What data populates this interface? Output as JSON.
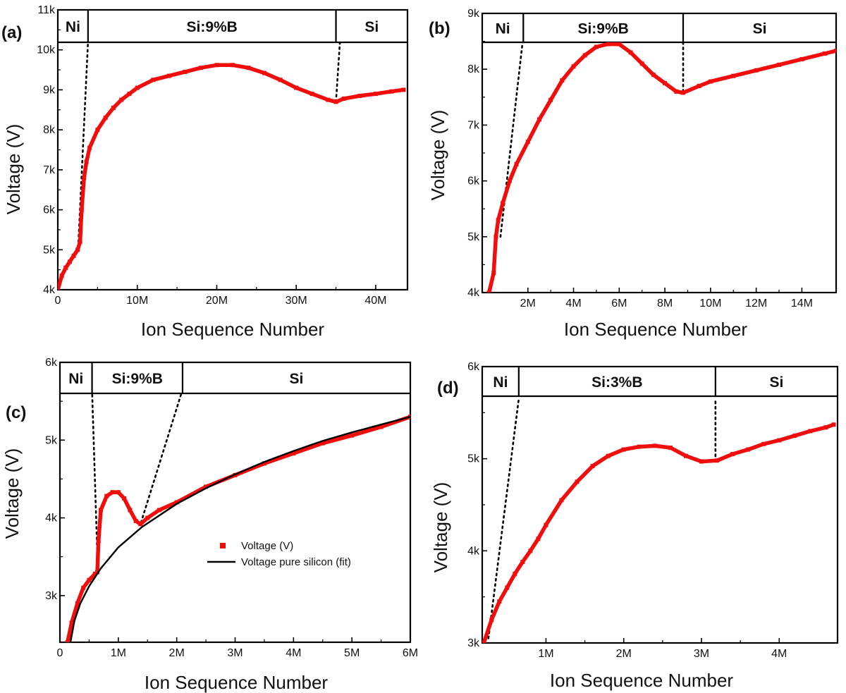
{
  "colors": {
    "data": "#f20d0d",
    "fit": "#000000",
    "guide": "#000000",
    "axis": "#000000"
  },
  "chart_data": [
    {
      "panel": "(a)",
      "type": "scatter",
      "xlabel": "Ion Sequence Number",
      "ylabel": "Voltage (V)",
      "xlim": [
        0,
        44000000
      ],
      "ylim": [
        4000,
        11000
      ],
      "x_ticks": [
        0,
        10000000,
        20000000,
        30000000,
        40000000
      ],
      "x_tick_labels": [
        "0",
        "10M",
        "20M",
        "30M",
        "40M"
      ],
      "y_ticks": [
        4000,
        5000,
        6000,
        7000,
        8000,
        9000,
        10000,
        11000
      ],
      "y_tick_labels": [
        "4k",
        "5k",
        "6k",
        "7k",
        "8k",
        "9k",
        "10k",
        "11k"
      ],
      "regions": [
        {
          "label": "Ni",
          "x_start": 0,
          "x_end": 3800000
        },
        {
          "label": "Si:9%B",
          "x_start": 3800000,
          "x_end": 35000000
        },
        {
          "label": "Si",
          "x_start": 35000000,
          "x_end": 44000000
        }
      ],
      "guide_lines": [
        {
          "x0": 2600000,
          "y0": 5200,
          "x1": 3800000,
          "y1": 10200
        },
        {
          "x0": 35000000,
          "y0": 8700,
          "x1": 35500000,
          "y1": 10200
        }
      ],
      "series": [
        {
          "style": "markers",
          "x": [
            0,
            500000,
            1000000,
            1500000,
            2000000,
            2500000,
            2800000,
            3000000,
            3300000,
            3600000,
            4000000,
            5000000,
            6000000,
            7000000,
            8000000,
            9000000,
            10000000,
            12000000,
            14000000,
            16000000,
            18000000,
            20000000,
            22000000,
            24000000,
            26000000,
            28000000,
            30000000,
            32000000,
            34000000,
            35000000,
            36000000,
            38000000,
            40000000,
            42000000,
            43500000
          ],
          "y": [
            4000,
            4350,
            4550,
            4700,
            4850,
            5000,
            5200,
            6000,
            6800,
            7200,
            7550,
            8000,
            8300,
            8550,
            8750,
            8900,
            9050,
            9250,
            9350,
            9450,
            9550,
            9620,
            9620,
            9550,
            9420,
            9250,
            9050,
            8900,
            8750,
            8700,
            8780,
            8850,
            8900,
            8960,
            9000
          ]
        }
      ]
    },
    {
      "panel": "(b)",
      "type": "scatter",
      "xlabel": "Ion Sequence Number",
      "ylabel": "Voltage (V)",
      "xlim": [
        0,
        15500000
      ],
      "ylim": [
        4000,
        9000
      ],
      "x_ticks": [
        2000000,
        4000000,
        6000000,
        8000000,
        10000000,
        12000000,
        14000000
      ],
      "x_tick_labels": [
        "2M",
        "4M",
        "6M",
        "8M",
        "10M",
        "12M",
        "14M"
      ],
      "y_ticks": [
        4000,
        5000,
        6000,
        7000,
        8000,
        9000
      ],
      "y_tick_labels": [
        "4k",
        "5k",
        "6k",
        "7k",
        "8k",
        "9k"
      ],
      "regions": [
        {
          "label": "Ni",
          "x_start": 0,
          "x_end": 1800000
        },
        {
          "label": "Si:9%B",
          "x_start": 1800000,
          "x_end": 8800000
        },
        {
          "label": "Si",
          "x_start": 8800000,
          "x_end": 15500000
        }
      ],
      "guide_lines": [
        {
          "x0": 800000,
          "y0": 5000,
          "x1": 1800000,
          "y1": 8600
        },
        {
          "x0": 8800000,
          "y0": 7600,
          "x1": 8800000,
          "y1": 8600
        }
      ],
      "series": [
        {
          "style": "markers",
          "x": [
            300000,
            500000,
            600000,
            700000,
            900000,
            1200000,
            1500000,
            2000000,
            2500000,
            3000000,
            3500000,
            4000000,
            4500000,
            5000000,
            5500000,
            6000000,
            6500000,
            7000000,
            7500000,
            8000000,
            8500000,
            8800000,
            9500000,
            10000000,
            11000000,
            12000000,
            13000000,
            14000000,
            15000000,
            15500000
          ],
          "y": [
            4000,
            4350,
            5000,
            5300,
            5600,
            6000,
            6300,
            6700,
            7100,
            7450,
            7800,
            8050,
            8250,
            8400,
            8450,
            8450,
            8300,
            8100,
            7900,
            7750,
            7600,
            7580,
            7700,
            7780,
            7880,
            7980,
            8080,
            8180,
            8280,
            8330
          ]
        }
      ]
    },
    {
      "panel": "(c)",
      "type": "scatter",
      "xlabel": "Ion Sequence Number",
      "ylabel": "Voltage (V)",
      "xlim": [
        0,
        6000000
      ],
      "ylim": [
        2400,
        6000
      ],
      "x_ticks": [
        0,
        1000000,
        2000000,
        3000000,
        4000000,
        5000000,
        6000000
      ],
      "x_tick_labels": [
        "0",
        "1M",
        "2M",
        "3M",
        "4M",
        "5M",
        "6M"
      ],
      "y_ticks": [
        3000,
        4000,
        5000,
        6000
      ],
      "y_tick_labels": [
        "3k",
        "4k",
        "5k",
        "6k"
      ],
      "regions": [
        {
          "label": "Ni",
          "x_start": 0,
          "x_end": 550000
        },
        {
          "label": "Si:9%B",
          "x_start": 550000,
          "x_end": 2100000
        },
        {
          "label": "Si",
          "x_start": 2100000,
          "x_end": 6000000
        }
      ],
      "guide_lines": [
        {
          "x0": 550000,
          "y0": 5650,
          "x1": 650000,
          "y1": 3300
        },
        {
          "x0": 2100000,
          "y0": 5650,
          "x1": 1380000,
          "y1": 3920
        }
      ],
      "legend": {
        "position": "center",
        "entries": [
          "Voltage (V)",
          "Voltage pure silicon (fit)"
        ]
      },
      "series": [
        {
          "name": "Voltage (V)",
          "style": "markers",
          "x": [
            130000,
            200000,
            300000,
            400000,
            500000,
            600000,
            640000,
            660000,
            700000,
            800000,
            900000,
            1000000,
            1100000,
            1200000,
            1300000,
            1380000,
            1500000,
            1700000,
            2000000,
            2500000,
            3000000,
            3500000,
            4000000,
            4500000,
            5000000,
            5500000,
            6000000
          ],
          "y": [
            2400,
            2650,
            2900,
            3100,
            3200,
            3280,
            3300,
            3700,
            4100,
            4280,
            4330,
            4330,
            4250,
            4100,
            3960,
            3920,
            4000,
            4100,
            4200,
            4400,
            4550,
            4700,
            4830,
            4960,
            5060,
            5170,
            5300
          ]
        },
        {
          "name": "Voltage pure silicon (fit)",
          "style": "line",
          "x": [
            180000,
            250000,
            350000,
            500000,
            700000,
            1000000,
            1400000,
            2000000,
            2500000,
            3000000,
            3500000,
            4000000,
            4500000,
            5000000,
            5500000,
            6000000
          ],
          "y": [
            2400,
            2680,
            2900,
            3120,
            3350,
            3620,
            3880,
            4180,
            4380,
            4560,
            4720,
            4860,
            4990,
            5100,
            5200,
            5300
          ]
        }
      ]
    },
    {
      "panel": "(d)",
      "type": "scatter",
      "xlabel": "Ion Sequence Number",
      "ylabel": "Voltage (V)",
      "xlim": [
        180000,
        4750000
      ],
      "ylim": [
        3000,
        6000
      ],
      "x_ticks": [
        1000000,
        2000000,
        3000000,
        4000000
      ],
      "x_tick_labels": [
        "1M",
        "2M",
        "3M",
        "4M"
      ],
      "y_ticks": [
        3000,
        4000,
        5000,
        6000
      ],
      "y_tick_labels": [
        "3k",
        "4k",
        "5k",
        "6k"
      ],
      "regions": [
        {
          "label": "Ni",
          "x_start": 180000,
          "x_end": 650000
        },
        {
          "label": "Si:3%B",
          "x_start": 650000,
          "x_end": 3180000
        },
        {
          "label": "Si",
          "x_start": 3180000,
          "x_end": 4750000
        }
      ],
      "guide_lines": [
        {
          "x0": 260000,
          "y0": 3050,
          "x1": 650000,
          "y1": 5650
        },
        {
          "x0": 3180000,
          "y0": 4970,
          "x1": 3180000,
          "y1": 5650
        }
      ],
      "series": [
        {
          "style": "markers",
          "x": [
            200000,
            300000,
            400000,
            500000,
            600000,
            700000,
            800000,
            900000,
            1000000,
            1200000,
            1400000,
            1600000,
            1800000,
            2000000,
            2200000,
            2400000,
            2600000,
            2800000,
            3000000,
            3200000,
            3400000,
            3600000,
            3800000,
            4000000,
            4200000,
            4400000,
            4600000,
            4700000
          ],
          "y": [
            3000,
            3250,
            3450,
            3600,
            3750,
            3880,
            4000,
            4130,
            4280,
            4550,
            4750,
            4920,
            5030,
            5100,
            5130,
            5140,
            5120,
            5030,
            4970,
            4980,
            5050,
            5100,
            5160,
            5200,
            5250,
            5300,
            5340,
            5370
          ]
        }
      ]
    }
  ]
}
